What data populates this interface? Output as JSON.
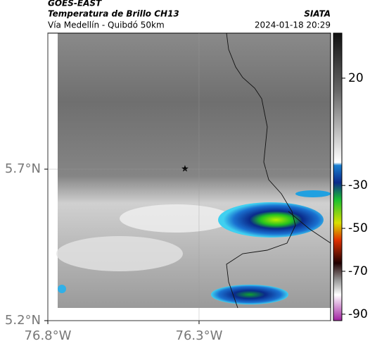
{
  "header": {
    "satellite": "GOES-EAST",
    "title": "Temperatura de Brillo CH13",
    "subtitle": "Vía Medellín - Quibdó 50km",
    "source": "SIATA",
    "datetime": "2024-01-18 20:29"
  },
  "map": {
    "xlim": [
      -76.8,
      -75.865
    ],
    "ylim": [
      5.2,
      6.149
    ],
    "xticks": [
      {
        "value": -76.8,
        "label": "76.8°W"
      },
      {
        "value": -76.3,
        "label": "76.3°W"
      }
    ],
    "yticks": [
      {
        "value": 5.2,
        "label": "5.2°N"
      },
      {
        "value": 5.7,
        "label": "5.7°N"
      }
    ],
    "grid": true
  },
  "colorbar": {
    "lim": [
      -93,
      41
    ],
    "ticks": [
      20,
      -30,
      -50,
      -70,
      -90
    ]
  }
}
